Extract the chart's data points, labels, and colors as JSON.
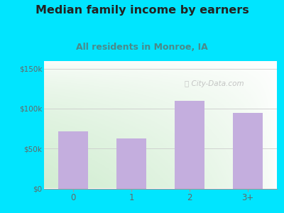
{
  "title": "Median family income by earners",
  "subtitle": "All residents in Monroe, IA",
  "categories": [
    "0",
    "1",
    "2",
    "3+"
  ],
  "values": [
    72000,
    63000,
    110000,
    95000
  ],
  "bar_color": "#c4aede",
  "bar_edgecolor": "none",
  "background_outer": "#00e5ff",
  "plot_bg_top_left": "#d4edda",
  "plot_bg_bottom_right": "#ffffff",
  "title_color": "#222222",
  "subtitle_color": "#4a8a8a",
  "ytick_labels": [
    "$0",
    "$50k",
    "$100k",
    "$150k"
  ],
  "ytick_values": [
    0,
    50000,
    100000,
    150000
  ],
  "ylim": [
    0,
    160000
  ],
  "title_fontsize": 11.5,
  "subtitle_fontsize": 9,
  "tick_color": "#666666",
  "watermark": "City-Data.com",
  "watermark_color": "#bbbbbb",
  "grid_color": "#cccccc"
}
